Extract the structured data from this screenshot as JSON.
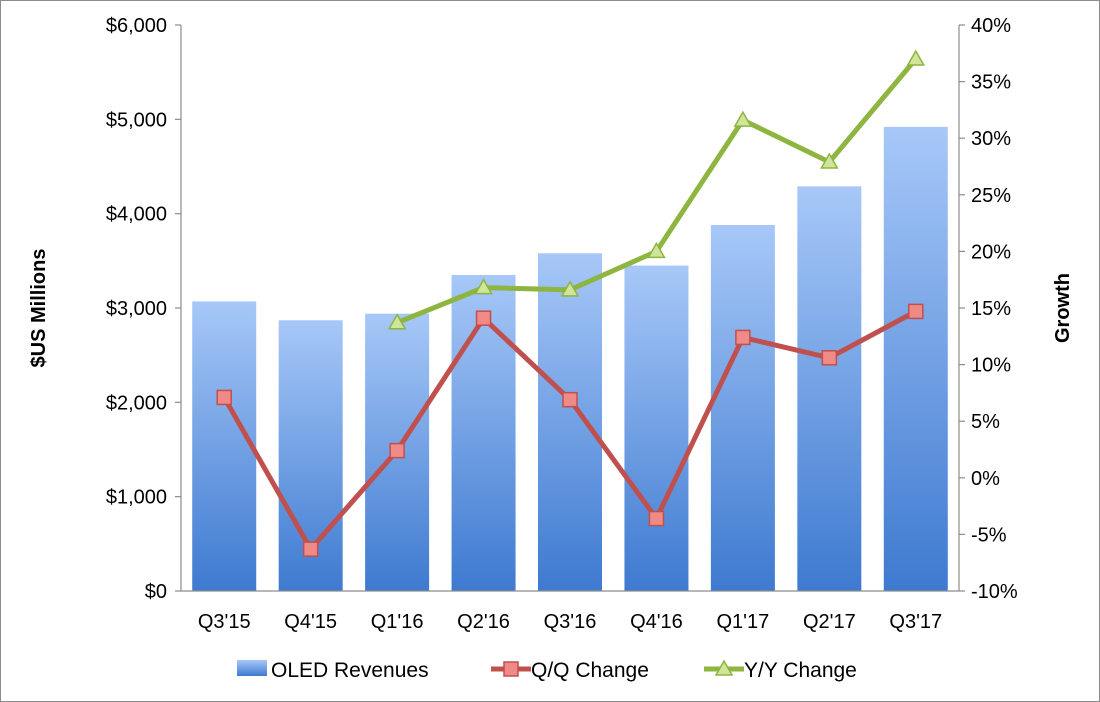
{
  "chart_data": {
    "type": "bar",
    "categories": [
      "Q3'15",
      "Q4'15",
      "Q1'16",
      "Q2'16",
      "Q3'16",
      "Q4'16",
      "Q1'17",
      "Q2'17",
      "Q3'17"
    ],
    "ylabel": "$US Millions",
    "y2label": "Growth",
    "ylim": [
      0,
      6000
    ],
    "y2lim": [
      -10,
      40
    ],
    "y_ticks": [
      "$0",
      "$1,000",
      "$2,000",
      "$3,000",
      "$4,000",
      "$5,000",
      "$6,000"
    ],
    "y2_ticks": [
      "-10%",
      "-5%",
      "0%",
      "5%",
      "10%",
      "15%",
      "20%",
      "25%",
      "30%",
      "35%",
      "40%"
    ],
    "legend_position": "bottom",
    "series": [
      {
        "name": "OLED Revenues",
        "kind": "bar",
        "axis": "left",
        "color": "#4f86d9",
        "values": [
          3070,
          2870,
          2940,
          3350,
          3580,
          3450,
          3880,
          4290,
          4920
        ]
      },
      {
        "name": "Q/Q Change",
        "kind": "line",
        "axis": "right",
        "marker": "square",
        "color": "#c0504d",
        "values": [
          7.1,
          -6.3,
          2.4,
          14.1,
          6.9,
          -3.6,
          12.4,
          10.6,
          14.7
        ]
      },
      {
        "name": "Y/Y Change",
        "kind": "line",
        "axis": "right",
        "marker": "triangle",
        "color": "#8db53f",
        "values": [
          null,
          null,
          13.7,
          16.8,
          16.6,
          20.0,
          31.6,
          27.9,
          37.0
        ]
      }
    ]
  }
}
